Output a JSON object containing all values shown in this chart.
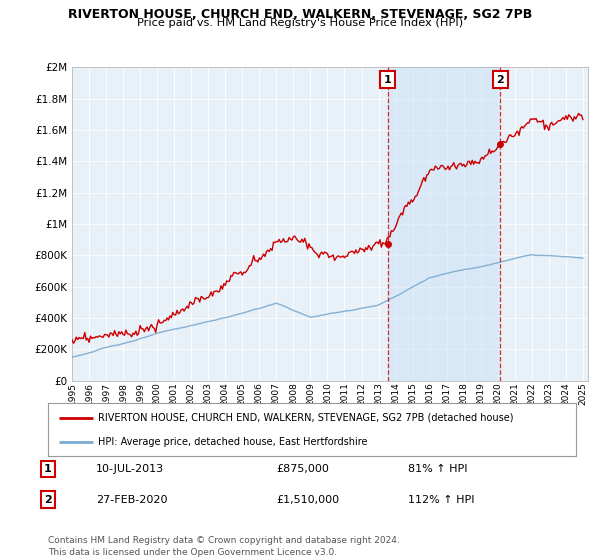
{
  "title": "RIVERTON HOUSE, CHURCH END, WALKERN, STEVENAGE, SG2 7PB",
  "subtitle": "Price paid vs. HM Land Registry's House Price Index (HPI)",
  "legend_line1": "RIVERTON HOUSE, CHURCH END, WALKERN, STEVENAGE, SG2 7PB (detached house)",
  "legend_line2": "HPI: Average price, detached house, East Hertfordshire",
  "annotation1_label": "1",
  "annotation1_date": "10-JUL-2013",
  "annotation1_price": "£875,000",
  "annotation1_hpi": "81% ↑ HPI",
  "annotation2_label": "2",
  "annotation2_date": "27-FEB-2020",
  "annotation2_price": "£1,510,000",
  "annotation2_hpi": "112% ↑ HPI",
  "footnote": "Contains HM Land Registry data © Crown copyright and database right 2024.\nThis data is licensed under the Open Government Licence v3.0.",
  "house_color": "#cc0000",
  "hpi_color": "#7aaad0",
  "background_color": "#ffffff",
  "plot_bg_color": "#e8f0f8",
  "vline_color": "#cc0000",
  "shade_color": "#d0e4f7",
  "ylim": [
    0,
    2000000
  ],
  "yticks": [
    0,
    200000,
    400000,
    600000,
    800000,
    1000000,
    1200000,
    1400000,
    1600000,
    1800000,
    2000000
  ],
  "xstart_year": 1995,
  "xend_year": 2025,
  "sale1_year": 2013.53,
  "sale2_year": 2020.16,
  "sale1_price": 875000,
  "sale2_price": 1510000
}
